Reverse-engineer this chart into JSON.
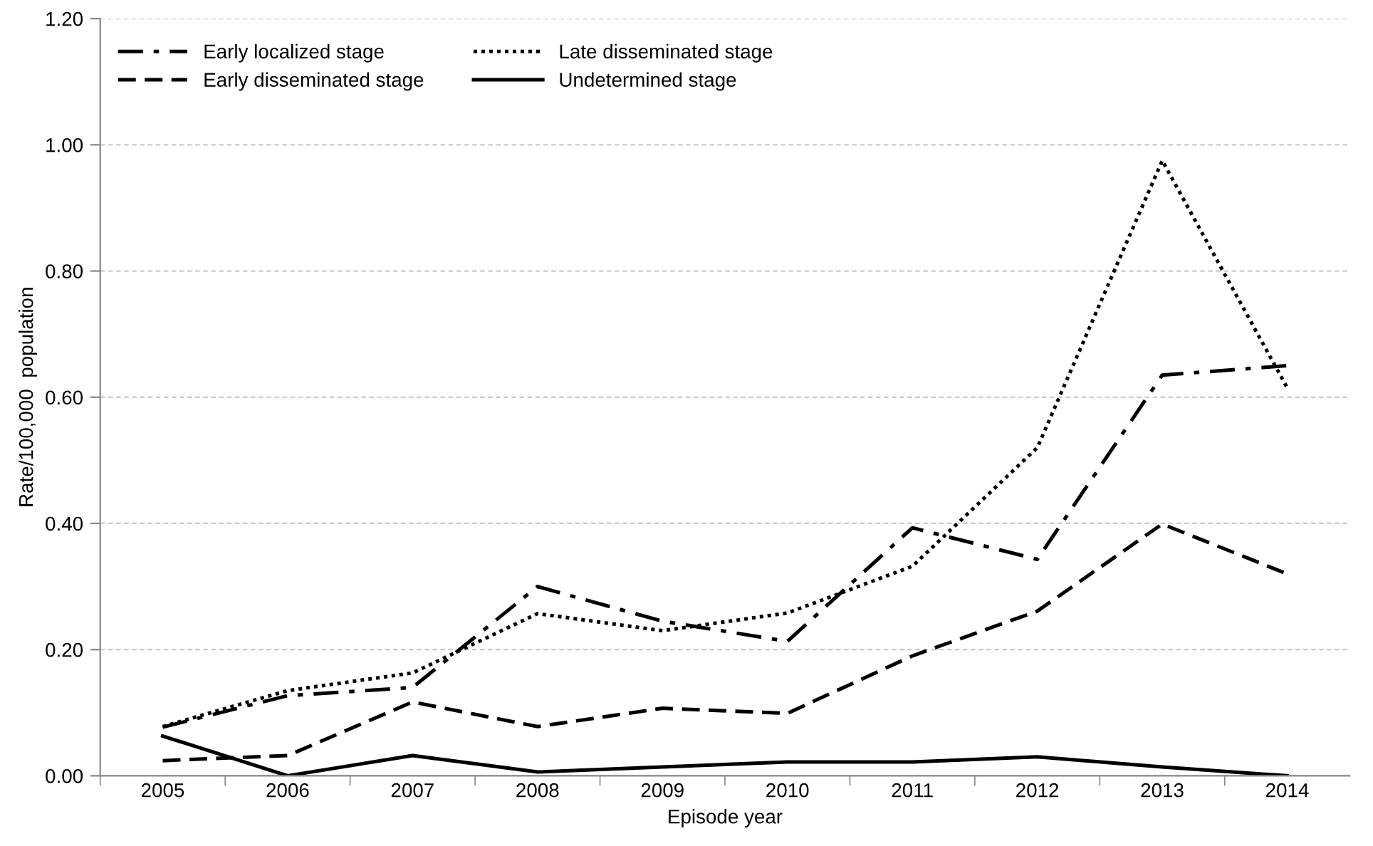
{
  "chart_data": {
    "type": "line",
    "xlabel": "Episode year",
    "ylabel": "Rate/100,000  population",
    "categories": [
      "2005",
      "2006",
      "2007",
      "2008",
      "2009",
      "2010",
      "2011",
      "2012",
      "2013",
      "2014"
    ],
    "series": [
      {
        "name": "Early localized stage",
        "color": "#000000",
        "line_style": "dashdot",
        "values": [
          0.077,
          0.127,
          0.14,
          0.3,
          0.245,
          0.213,
          0.393,
          0.343,
          0.635,
          0.65
        ]
      },
      {
        "name": "Early disseminated stage",
        "color": "#000000",
        "line_style": "dashed",
        "values": [
          0.024,
          0.032,
          0.117,
          0.078,
          0.107,
          0.099,
          0.19,
          0.261,
          0.399,
          0.32
        ]
      },
      {
        "name": "Late disseminated stage",
        "color": "#000000",
        "line_style": "dotted",
        "values": [
          0.078,
          0.135,
          0.163,
          0.257,
          0.23,
          0.258,
          0.332,
          0.52,
          0.975,
          0.615
        ]
      },
      {
        "name": "Undetermined stage",
        "color": "#000000",
        "line_style": "solid",
        "values": [
          0.063,
          0.0,
          0.032,
          0.006,
          0.014,
          0.022,
          0.022,
          0.03,
          0.014,
          0.0
        ]
      }
    ],
    "ylim": [
      0,
      1.2
    ],
    "yticks": [
      {
        "value": 0,
        "label": "0.00"
      },
      {
        "value": 0.2,
        "label": "0.20"
      },
      {
        "value": 0.4,
        "label": "0.40"
      },
      {
        "value": 0.6,
        "label": "0.60"
      },
      {
        "value": 0.8,
        "label": "0.80"
      },
      {
        "value": 1.0,
        "label": "1.00"
      },
      {
        "value": 1.2,
        "label": "1.20"
      }
    ],
    "grid": "y",
    "legend": "top left",
    "marker": "none"
  }
}
